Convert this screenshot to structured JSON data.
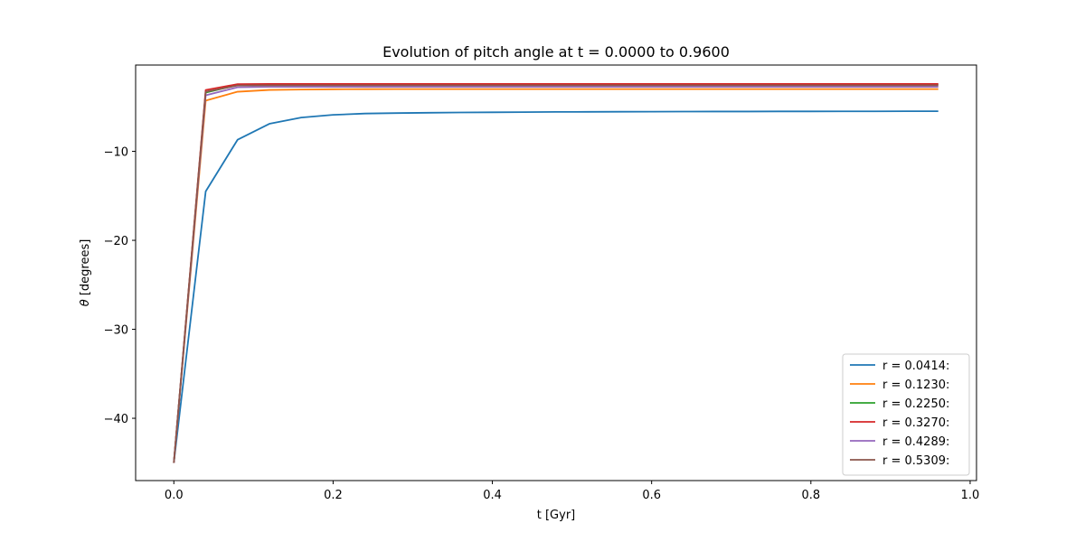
{
  "chart_data": {
    "type": "line",
    "title": "Evolution of pitch angle at t = 0.0000 to 0.9600",
    "xlabel": "t [Gyr]",
    "ylabel_symbol": "θ",
    "ylabel_unit": " [degrees]",
    "xlim": [
      -0.048,
      1.008
    ],
    "ylim": [
      -47.0,
      -0.3
    ],
    "xticks": [
      0.0,
      0.2,
      0.4,
      0.6,
      0.8,
      1.0
    ],
    "xtick_labels": [
      "0.0",
      "0.2",
      "0.4",
      "0.6",
      "0.8",
      "1.0"
    ],
    "yticks": [
      -40,
      -30,
      -20,
      -10
    ],
    "ytick_labels": [
      "−40",
      "−30",
      "−20",
      "−10"
    ],
    "grid": false,
    "legend_position": "lower-right",
    "x": [
      0.0,
      0.04,
      0.08,
      0.12,
      0.16,
      0.2,
      0.24,
      0.28,
      0.32,
      0.36,
      0.4,
      0.44,
      0.48,
      0.52,
      0.56,
      0.6,
      0.64,
      0.68,
      0.72,
      0.76,
      0.8,
      0.84,
      0.88,
      0.92,
      0.96
    ],
    "series": [
      {
        "name": "r = 0.0414:",
        "color": "#1f77b4",
        "values": [
          -45.0,
          -14.5,
          -8.7,
          -6.9,
          -6.2,
          -5.9,
          -5.75,
          -5.7,
          -5.66,
          -5.63,
          -5.61,
          -5.59,
          -5.57,
          -5.56,
          -5.55,
          -5.54,
          -5.53,
          -5.52,
          -5.52,
          -5.51,
          -5.51,
          -5.5,
          -5.5,
          -5.49,
          -5.49
        ]
      },
      {
        "name": "r = 0.1230:",
        "color": "#ff7f0e",
        "values": [
          -45.0,
          -4.3,
          -3.3,
          -3.1,
          -3.05,
          -3.02,
          -3.01,
          -3.0,
          -3.0,
          -3.0,
          -3.0,
          -3.0,
          -3.0,
          -3.0,
          -3.0,
          -3.0,
          -3.0,
          -3.0,
          -3.0,
          -3.0,
          -3.0,
          -3.0,
          -3.0,
          -3.0,
          -3.0
        ]
      },
      {
        "name": "r = 0.2250:",
        "color": "#2ca02c",
        "values": [
          -45.0,
          -3.4,
          -2.55,
          -2.5,
          -2.5,
          -2.5,
          -2.5,
          -2.5,
          -2.5,
          -2.5,
          -2.5,
          -2.5,
          -2.5,
          -2.5,
          -2.5,
          -2.5,
          -2.5,
          -2.5,
          -2.5,
          -2.5,
          -2.5,
          -2.5,
          -2.5,
          -2.5,
          -2.5
        ]
      },
      {
        "name": "r = 0.3270:",
        "color": "#d62728",
        "values": [
          -45.0,
          -3.1,
          -2.45,
          -2.42,
          -2.42,
          -2.42,
          -2.42,
          -2.42,
          -2.42,
          -2.42,
          -2.42,
          -2.42,
          -2.42,
          -2.42,
          -2.42,
          -2.42,
          -2.42,
          -2.42,
          -2.42,
          -2.42,
          -2.42,
          -2.42,
          -2.42,
          -2.42,
          -2.42
        ]
      },
      {
        "name": "r = 0.4289:",
        "color": "#9467bd",
        "values": [
          -45.0,
          -3.7,
          -2.8,
          -2.75,
          -2.75,
          -2.75,
          -2.75,
          -2.75,
          -2.75,
          -2.75,
          -2.75,
          -2.75,
          -2.75,
          -2.75,
          -2.75,
          -2.75,
          -2.75,
          -2.75,
          -2.75,
          -2.75,
          -2.75,
          -2.75,
          -2.75,
          -2.75,
          -2.75
        ]
      },
      {
        "name": "r = 0.5309:",
        "color": "#8c564b",
        "values": [
          -45.0,
          -3.3,
          -2.6,
          -2.58,
          -2.58,
          -2.58,
          -2.58,
          -2.58,
          -2.58,
          -2.58,
          -2.58,
          -2.58,
          -2.58,
          -2.58,
          -2.58,
          -2.58,
          -2.58,
          -2.58,
          -2.58,
          -2.58,
          -2.58,
          -2.58,
          -2.58,
          -2.58,
          -2.58
        ]
      }
    ]
  }
}
